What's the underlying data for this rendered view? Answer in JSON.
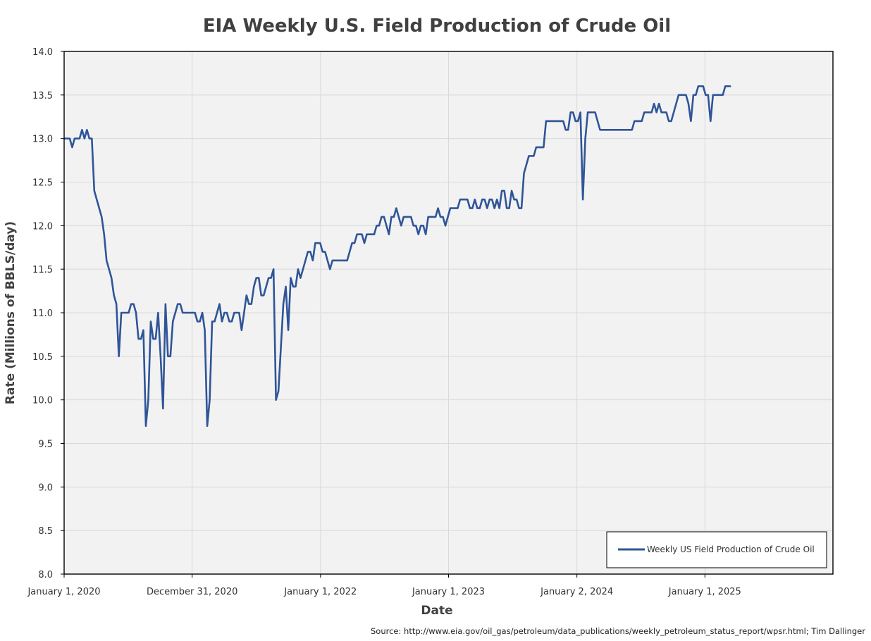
{
  "chart_data": {
    "type": "line",
    "title": "EIA Weekly U.S. Field Production of Crude Oil",
    "xlabel": "Date",
    "ylabel": "Rate (Millions of BBLS/day)",
    "source": "Source: http://www.eia.gov/oil_gas/petroleum/data_publications/weekly_petroleum_status_report/wpsr.html; Tim Dallinger",
    "xlim": [
      "2020-01-01",
      "2026-01-01"
    ],
    "ylim": [
      8.0,
      14.0
    ],
    "y_ticks": [
      "8.0",
      "8.5",
      "9.0",
      "9.5",
      "10.0",
      "10.5",
      "11.0",
      "11.5",
      "12.0",
      "12.5",
      "13.0",
      "13.5",
      "14.0"
    ],
    "x_ticks": [
      {
        "date": "2020-01-01",
        "label": "January 1, 2020"
      },
      {
        "date": "2020-12-31",
        "label": "December 31, 2020"
      },
      {
        "date": "2022-01-01",
        "label": "January 1, 2022"
      },
      {
        "date": "2023-01-01",
        "label": "January 1, 2023"
      },
      {
        "date": "2024-01-02",
        "label": "January 2, 2024"
      },
      {
        "date": "2025-01-01",
        "label": "January 1, 2025"
      }
    ],
    "x_gridlines": [
      "2020-12-31",
      "2022-01-01",
      "2023-01-01",
      "2024-01-02",
      "2025-01-01"
    ],
    "grid": true,
    "legend_position": "bottom-right",
    "series": [
      {
        "name": "Weekly US Field Production of Crude Oil",
        "color": "#2f5597",
        "points": [
          [
            "2020-01-03",
            13.0
          ],
          [
            "2020-01-10",
            13.0
          ],
          [
            "2020-01-17",
            13.0
          ],
          [
            "2020-01-24",
            12.9
          ],
          [
            "2020-01-31",
            13.0
          ],
          [
            "2020-02-07",
            13.0
          ],
          [
            "2020-02-14",
            13.0
          ],
          [
            "2020-02-21",
            13.1
          ],
          [
            "2020-02-28",
            13.0
          ],
          [
            "2020-03-06",
            13.1
          ],
          [
            "2020-03-13",
            13.0
          ],
          [
            "2020-03-20",
            13.0
          ],
          [
            "2020-03-27",
            12.4
          ],
          [
            "2020-04-03",
            12.3
          ],
          [
            "2020-04-10",
            12.2
          ],
          [
            "2020-04-17",
            12.1
          ],
          [
            "2020-04-24",
            11.9
          ],
          [
            "2020-05-01",
            11.6
          ],
          [
            "2020-05-08",
            11.5
          ],
          [
            "2020-05-15",
            11.4
          ],
          [
            "2020-05-22",
            11.2
          ],
          [
            "2020-05-29",
            11.1
          ],
          [
            "2020-06-05",
            10.5
          ],
          [
            "2020-06-12",
            11.0
          ],
          [
            "2020-06-19",
            11.0
          ],
          [
            "2020-06-26",
            11.0
          ],
          [
            "2020-07-03",
            11.0
          ],
          [
            "2020-07-10",
            11.1
          ],
          [
            "2020-07-17",
            11.1
          ],
          [
            "2020-07-24",
            11.0
          ],
          [
            "2020-07-31",
            10.7
          ],
          [
            "2020-08-07",
            10.7
          ],
          [
            "2020-08-14",
            10.8
          ],
          [
            "2020-08-21",
            9.7
          ],
          [
            "2020-08-28",
            10.0
          ],
          [
            "2020-09-04",
            10.9
          ],
          [
            "2020-09-11",
            10.7
          ],
          [
            "2020-09-18",
            10.7
          ],
          [
            "2020-09-25",
            11.0
          ],
          [
            "2020-10-02",
            10.5
          ],
          [
            "2020-10-09",
            9.9
          ],
          [
            "2020-10-16",
            11.1
          ],
          [
            "2020-10-23",
            10.5
          ],
          [
            "2020-10-30",
            10.5
          ],
          [
            "2020-11-06",
            10.9
          ],
          [
            "2020-11-13",
            11.0
          ],
          [
            "2020-11-20",
            11.1
          ],
          [
            "2020-11-27",
            11.1
          ],
          [
            "2020-12-04",
            11.0
          ],
          [
            "2020-12-11",
            11.0
          ],
          [
            "2020-12-18",
            11.0
          ],
          [
            "2020-12-25",
            11.0
          ],
          [
            "2021-01-01",
            11.0
          ],
          [
            "2021-01-08",
            11.0
          ],
          [
            "2021-01-15",
            10.9
          ],
          [
            "2021-01-22",
            10.9
          ],
          [
            "2021-01-29",
            11.0
          ],
          [
            "2021-02-05",
            10.8
          ],
          [
            "2021-02-12",
            9.7
          ],
          [
            "2021-02-19",
            10.0
          ],
          [
            "2021-02-26",
            10.9
          ],
          [
            "2021-03-05",
            10.9
          ],
          [
            "2021-03-12",
            11.0
          ],
          [
            "2021-03-19",
            11.1
          ],
          [
            "2021-03-26",
            10.9
          ],
          [
            "2021-04-02",
            11.0
          ],
          [
            "2021-04-09",
            11.0
          ],
          [
            "2021-04-16",
            10.9
          ],
          [
            "2021-04-23",
            10.9
          ],
          [
            "2021-04-30",
            11.0
          ],
          [
            "2021-05-07",
            11.0
          ],
          [
            "2021-05-14",
            11.0
          ],
          [
            "2021-05-21",
            10.8
          ],
          [
            "2021-05-28",
            11.0
          ],
          [
            "2021-06-04",
            11.2
          ],
          [
            "2021-06-11",
            11.1
          ],
          [
            "2021-06-18",
            11.1
          ],
          [
            "2021-06-25",
            11.3
          ],
          [
            "2021-07-02",
            11.4
          ],
          [
            "2021-07-09",
            11.4
          ],
          [
            "2021-07-16",
            11.2
          ],
          [
            "2021-07-23",
            11.2
          ],
          [
            "2021-07-30",
            11.3
          ],
          [
            "2021-08-06",
            11.4
          ],
          [
            "2021-08-13",
            11.4
          ],
          [
            "2021-08-20",
            11.5
          ],
          [
            "2021-08-27",
            10.0
          ],
          [
            "2021-09-03",
            10.1
          ],
          [
            "2021-09-10",
            10.6
          ],
          [
            "2021-09-17",
            11.1
          ],
          [
            "2021-09-24",
            11.3
          ],
          [
            "2021-10-01",
            10.8
          ],
          [
            "2021-10-08",
            11.4
          ],
          [
            "2021-10-15",
            11.3
          ],
          [
            "2021-10-22",
            11.3
          ],
          [
            "2021-10-29",
            11.5
          ],
          [
            "2021-11-05",
            11.4
          ],
          [
            "2021-11-12",
            11.5
          ],
          [
            "2021-11-19",
            11.6
          ],
          [
            "2021-11-26",
            11.7
          ],
          [
            "2021-12-03",
            11.7
          ],
          [
            "2021-12-10",
            11.6
          ],
          [
            "2021-12-17",
            11.8
          ],
          [
            "2021-12-24",
            11.8
          ],
          [
            "2021-12-31",
            11.8
          ],
          [
            "2022-01-07",
            11.7
          ],
          [
            "2022-01-14",
            11.7
          ],
          [
            "2022-01-21",
            11.6
          ],
          [
            "2022-01-28",
            11.5
          ],
          [
            "2022-02-04",
            11.6
          ],
          [
            "2022-02-11",
            11.6
          ],
          [
            "2022-02-18",
            11.6
          ],
          [
            "2022-02-25",
            11.6
          ],
          [
            "2022-03-04",
            11.6
          ],
          [
            "2022-03-11",
            11.6
          ],
          [
            "2022-03-18",
            11.6
          ],
          [
            "2022-03-25",
            11.7
          ],
          [
            "2022-04-01",
            11.8
          ],
          [
            "2022-04-08",
            11.8
          ],
          [
            "2022-04-15",
            11.9
          ],
          [
            "2022-04-22",
            11.9
          ],
          [
            "2022-04-29",
            11.9
          ],
          [
            "2022-05-06",
            11.8
          ],
          [
            "2022-05-13",
            11.9
          ],
          [
            "2022-05-20",
            11.9
          ],
          [
            "2022-05-27",
            11.9
          ],
          [
            "2022-06-03",
            11.9
          ],
          [
            "2022-06-10",
            12.0
          ],
          [
            "2022-06-17",
            12.0
          ],
          [
            "2022-06-24",
            12.1
          ],
          [
            "2022-07-01",
            12.1
          ],
          [
            "2022-07-08",
            12.0
          ],
          [
            "2022-07-15",
            11.9
          ],
          [
            "2022-07-22",
            12.1
          ],
          [
            "2022-07-29",
            12.1
          ],
          [
            "2022-08-05",
            12.2
          ],
          [
            "2022-08-12",
            12.1
          ],
          [
            "2022-08-19",
            12.0
          ],
          [
            "2022-08-26",
            12.1
          ],
          [
            "2022-09-02",
            12.1
          ],
          [
            "2022-09-09",
            12.1
          ],
          [
            "2022-09-16",
            12.1
          ],
          [
            "2022-09-23",
            12.0
          ],
          [
            "2022-09-30",
            12.0
          ],
          [
            "2022-10-07",
            11.9
          ],
          [
            "2022-10-14",
            12.0
          ],
          [
            "2022-10-21",
            12.0
          ],
          [
            "2022-10-28",
            11.9
          ],
          [
            "2022-11-04",
            12.1
          ],
          [
            "2022-11-11",
            12.1
          ],
          [
            "2022-11-18",
            12.1
          ],
          [
            "2022-11-25",
            12.1
          ],
          [
            "2022-12-02",
            12.2
          ],
          [
            "2022-12-09",
            12.1
          ],
          [
            "2022-12-16",
            12.1
          ],
          [
            "2022-12-23",
            12.0
          ],
          [
            "2022-12-30",
            12.1
          ],
          [
            "2023-01-06",
            12.2
          ],
          [
            "2023-01-13",
            12.2
          ],
          [
            "2023-01-20",
            12.2
          ],
          [
            "2023-01-27",
            12.2
          ],
          [
            "2023-02-03",
            12.3
          ],
          [
            "2023-02-10",
            12.3
          ],
          [
            "2023-02-17",
            12.3
          ],
          [
            "2023-02-24",
            12.3
          ],
          [
            "2023-03-03",
            12.2
          ],
          [
            "2023-03-10",
            12.2
          ],
          [
            "2023-03-17",
            12.3
          ],
          [
            "2023-03-24",
            12.2
          ],
          [
            "2023-03-31",
            12.2
          ],
          [
            "2023-04-07",
            12.3
          ],
          [
            "2023-04-14",
            12.3
          ],
          [
            "2023-04-21",
            12.2
          ],
          [
            "2023-04-28",
            12.3
          ],
          [
            "2023-05-05",
            12.3
          ],
          [
            "2023-05-12",
            12.2
          ],
          [
            "2023-05-19",
            12.3
          ],
          [
            "2023-05-26",
            12.2
          ],
          [
            "2023-06-02",
            12.4
          ],
          [
            "2023-06-09",
            12.4
          ],
          [
            "2023-06-16",
            12.2
          ],
          [
            "2023-06-23",
            12.2
          ],
          [
            "2023-06-30",
            12.4
          ],
          [
            "2023-07-07",
            12.3
          ],
          [
            "2023-07-14",
            12.3
          ],
          [
            "2023-07-21",
            12.2
          ],
          [
            "2023-07-28",
            12.2
          ],
          [
            "2023-08-04",
            12.6
          ],
          [
            "2023-08-11",
            12.7
          ],
          [
            "2023-08-18",
            12.8
          ],
          [
            "2023-08-25",
            12.8
          ],
          [
            "2023-09-01",
            12.8
          ],
          [
            "2023-09-08",
            12.9
          ],
          [
            "2023-09-15",
            12.9
          ],
          [
            "2023-09-22",
            12.9
          ],
          [
            "2023-09-29",
            12.9
          ],
          [
            "2023-10-06",
            13.2
          ],
          [
            "2023-10-13",
            13.2
          ],
          [
            "2023-10-20",
            13.2
          ],
          [
            "2023-10-27",
            13.2
          ],
          [
            "2023-11-03",
            13.2
          ],
          [
            "2023-11-10",
            13.2
          ],
          [
            "2023-11-17",
            13.2
          ],
          [
            "2023-11-24",
            13.2
          ],
          [
            "2023-12-01",
            13.1
          ],
          [
            "2023-12-08",
            13.1
          ],
          [
            "2023-12-15",
            13.3
          ],
          [
            "2023-12-22",
            13.3
          ],
          [
            "2023-12-29",
            13.2
          ],
          [
            "2024-01-05",
            13.2
          ],
          [
            "2024-01-12",
            13.3
          ],
          [
            "2024-01-19",
            12.3
          ],
          [
            "2024-01-26",
            13.0
          ],
          [
            "2024-02-02",
            13.3
          ],
          [
            "2024-02-09",
            13.3
          ],
          [
            "2024-02-16",
            13.3
          ],
          [
            "2024-02-23",
            13.3
          ],
          [
            "2024-03-01",
            13.2
          ],
          [
            "2024-03-08",
            13.1
          ],
          [
            "2024-03-15",
            13.1
          ],
          [
            "2024-03-22",
            13.1
          ],
          [
            "2024-03-29",
            13.1
          ],
          [
            "2024-04-05",
            13.1
          ],
          [
            "2024-04-12",
            13.1
          ],
          [
            "2024-04-19",
            13.1
          ],
          [
            "2024-04-26",
            13.1
          ],
          [
            "2024-05-03",
            13.1
          ],
          [
            "2024-05-10",
            13.1
          ],
          [
            "2024-05-17",
            13.1
          ],
          [
            "2024-05-24",
            13.1
          ],
          [
            "2024-05-31",
            13.1
          ],
          [
            "2024-06-07",
            13.1
          ],
          [
            "2024-06-14",
            13.2
          ],
          [
            "2024-06-21",
            13.2
          ],
          [
            "2024-06-28",
            13.2
          ],
          [
            "2024-07-05",
            13.2
          ],
          [
            "2024-07-12",
            13.3
          ],
          [
            "2024-07-19",
            13.3
          ],
          [
            "2024-07-26",
            13.3
          ],
          [
            "2024-08-02",
            13.3
          ],
          [
            "2024-08-09",
            13.4
          ],
          [
            "2024-08-16",
            13.3
          ],
          [
            "2024-08-23",
            13.4
          ],
          [
            "2024-08-30",
            13.3
          ],
          [
            "2024-09-06",
            13.3
          ],
          [
            "2024-09-13",
            13.3
          ],
          [
            "2024-09-20",
            13.2
          ],
          [
            "2024-09-27",
            13.2
          ],
          [
            "2024-10-04",
            13.3
          ],
          [
            "2024-10-11",
            13.4
          ],
          [
            "2024-10-18",
            13.5
          ],
          [
            "2024-10-25",
            13.5
          ],
          [
            "2024-11-01",
            13.5
          ],
          [
            "2024-11-08",
            13.5
          ],
          [
            "2024-11-15",
            13.4
          ],
          [
            "2024-11-22",
            13.2
          ],
          [
            "2024-11-29",
            13.5
          ],
          [
            "2024-12-06",
            13.5
          ],
          [
            "2024-12-13",
            13.6
          ],
          [
            "2024-12-20",
            13.6
          ],
          [
            "2024-12-27",
            13.6
          ],
          [
            "2025-01-03",
            13.5
          ],
          [
            "2025-01-10",
            13.5
          ],
          [
            "2025-01-17",
            13.2
          ],
          [
            "2025-01-24",
            13.5
          ],
          [
            "2025-01-31",
            13.5
          ],
          [
            "2025-02-07",
            13.5
          ],
          [
            "2025-02-14",
            13.5
          ],
          [
            "2025-02-21",
            13.5
          ],
          [
            "2025-02-28",
            13.6
          ],
          [
            "2025-03-07",
            13.6
          ],
          [
            "2025-03-14",
            13.6
          ]
        ]
      }
    ]
  }
}
